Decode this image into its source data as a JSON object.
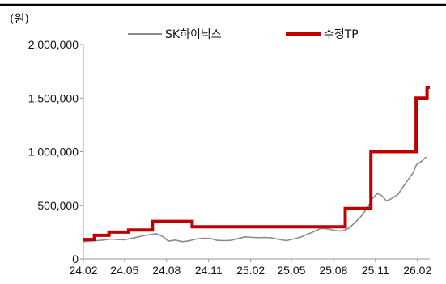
{
  "chart_data": {
    "type": "line",
    "unit_label": "(원)",
    "title": "",
    "xlabel": "",
    "ylabel": "",
    "ylim": [
      0,
      2000000
    ],
    "yticks": [
      0,
      500000,
      1000000,
      1500000,
      2000000
    ],
    "ytick_labels": [
      "0",
      "500,000",
      "1,000,000",
      "1,500,000",
      "2,000,000"
    ],
    "xlim": [
      "2024-02-01",
      "2026-02-28"
    ],
    "xticks": [
      "2024-02",
      "2024-05",
      "2024-08",
      "2024-11",
      "2025-02",
      "2025-05",
      "2025-08",
      "2025-11",
      "2026-02"
    ],
    "xtick_labels": [
      "24.02",
      "24.05",
      "24.08",
      "24.11",
      "25.02",
      "25.05",
      "25.08",
      "25.11",
      "26.02"
    ],
    "grid": false,
    "legend_position": "top",
    "colors": {
      "frame": "#000000",
      "axis": "#999999",
      "series_price": "#8c8c8c",
      "series_tp": "#c00000"
    },
    "series": [
      {
        "name": "SK하이닉스",
        "style": "line",
        "points": [
          [
            "2024-02-01",
            160000
          ],
          [
            "2024-02-15",
            165000
          ],
          [
            "2024-03-01",
            170000
          ],
          [
            "2024-03-15",
            175000
          ],
          [
            "2024-04-01",
            185000
          ],
          [
            "2024-04-15",
            180000
          ],
          [
            "2024-05-01",
            178000
          ],
          [
            "2024-05-15",
            190000
          ],
          [
            "2024-06-01",
            205000
          ],
          [
            "2024-06-15",
            220000
          ],
          [
            "2024-07-01",
            230000
          ],
          [
            "2024-07-10",
            235000
          ],
          [
            "2024-07-25",
            205000
          ],
          [
            "2024-08-05",
            165000
          ],
          [
            "2024-08-20",
            175000
          ],
          [
            "2024-09-05",
            160000
          ],
          [
            "2024-09-20",
            168000
          ],
          [
            "2024-10-05",
            185000
          ],
          [
            "2024-10-20",
            192000
          ],
          [
            "2024-11-05",
            190000
          ],
          [
            "2024-11-20",
            172000
          ],
          [
            "2024-12-05",
            170000
          ],
          [
            "2024-12-20",
            172000
          ],
          [
            "2025-01-05",
            190000
          ],
          [
            "2025-01-20",
            205000
          ],
          [
            "2025-02-05",
            200000
          ],
          [
            "2025-02-20",
            198000
          ],
          [
            "2025-03-05",
            200000
          ],
          [
            "2025-03-20",
            195000
          ],
          [
            "2025-04-05",
            180000
          ],
          [
            "2025-04-20",
            170000
          ],
          [
            "2025-05-05",
            185000
          ],
          [
            "2025-05-20",
            200000
          ],
          [
            "2025-06-05",
            230000
          ],
          [
            "2025-06-20",
            255000
          ],
          [
            "2025-07-05",
            285000
          ],
          [
            "2025-07-20",
            280000
          ],
          [
            "2025-08-05",
            265000
          ],
          [
            "2025-08-20",
            260000
          ],
          [
            "2025-09-05",
            290000
          ],
          [
            "2025-09-20",
            350000
          ],
          [
            "2025-10-01",
            400000
          ],
          [
            "2025-10-15",
            480000
          ],
          [
            "2025-10-25",
            560000
          ],
          [
            "2025-11-05",
            610000
          ],
          [
            "2025-11-15",
            590000
          ],
          [
            "2025-11-25",
            540000
          ],
          [
            "2025-12-05",
            560000
          ],
          [
            "2025-12-20",
            600000
          ],
          [
            "2026-01-05",
            700000
          ],
          [
            "2026-01-15",
            760000
          ],
          [
            "2026-01-22",
            800000
          ],
          [
            "2026-01-30",
            880000
          ],
          [
            "2026-02-10",
            910000
          ],
          [
            "2026-02-20",
            950000
          ]
        ]
      },
      {
        "name": "수정TP",
        "style": "step",
        "points": [
          [
            "2024-02-01",
            180000
          ],
          [
            "2024-02-25",
            220000
          ],
          [
            "2024-03-28",
            250000
          ],
          [
            "2024-05-10",
            270000
          ],
          [
            "2024-07-01",
            350000
          ],
          [
            "2024-09-26",
            300000
          ],
          [
            "2025-08-20",
            300000
          ],
          [
            "2025-08-27",
            470000
          ],
          [
            "2025-10-22",
            1000000
          ],
          [
            "2026-01-29",
            1500000
          ],
          [
            "2026-02-22",
            1600000
          ],
          [
            "2026-02-28",
            1600000
          ]
        ]
      }
    ]
  }
}
